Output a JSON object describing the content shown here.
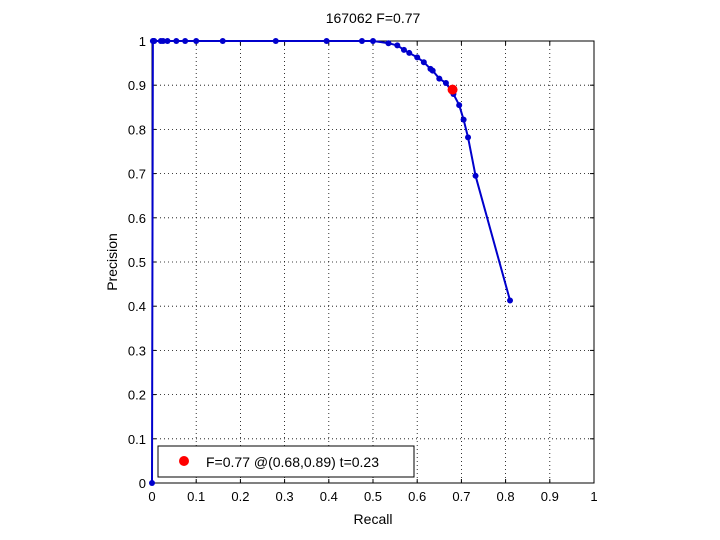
{
  "chart_data": {
    "type": "line",
    "title": "167062 F=0.77",
    "xlabel": "Recall",
    "ylabel": "Precision",
    "xlim": [
      0,
      1
    ],
    "ylim": [
      0,
      1
    ],
    "xticks": [
      "0",
      "0.1",
      "0.2",
      "0.3",
      "0.4",
      "0.5",
      "0.6",
      "0.7",
      "0.8",
      "0.9",
      "1"
    ],
    "yticks": [
      "0",
      "0.1",
      "0.2",
      "0.3",
      "0.4",
      "0.5",
      "0.6",
      "0.7",
      "0.8",
      "0.9",
      "1"
    ],
    "grid": true,
    "legend_position": "bottom-left",
    "series": [
      {
        "color": "#0000cc",
        "points": [
          [
            0,
            0
          ],
          [
            0.002,
            1
          ],
          [
            0.003,
            1
          ],
          [
            0.005,
            1
          ],
          [
            0.02,
            1
          ],
          [
            0.025,
            1
          ],
          [
            0.035,
            1
          ],
          [
            0.055,
            1
          ],
          [
            0.075,
            1
          ],
          [
            0.1,
            1
          ],
          [
            0.16,
            1
          ],
          [
            0.28,
            1
          ],
          [
            0.395,
            1
          ],
          [
            0.475,
            1
          ],
          [
            0.5,
            1
          ],
          [
            0.535,
            0.995
          ],
          [
            0.555,
            0.99
          ],
          [
            0.57,
            0.98
          ],
          [
            0.582,
            0.973
          ],
          [
            0.6,
            0.963
          ],
          [
            0.615,
            0.952
          ],
          [
            0.63,
            0.937
          ],
          [
            0.635,
            0.933
          ],
          [
            0.65,
            0.915
          ],
          [
            0.665,
            0.905
          ],
          [
            0.682,
            0.88
          ],
          [
            0.695,
            0.855
          ],
          [
            0.705,
            0.822
          ],
          [
            0.715,
            0.782
          ],
          [
            0.732,
            0.695
          ],
          [
            0.81,
            0.413
          ]
        ]
      }
    ],
    "highlight": {
      "color": "#ff0000",
      "x": 0.68,
      "y": 0.89,
      "label": "F=0.77 @(0.68,0.89) t=0.23"
    }
  }
}
